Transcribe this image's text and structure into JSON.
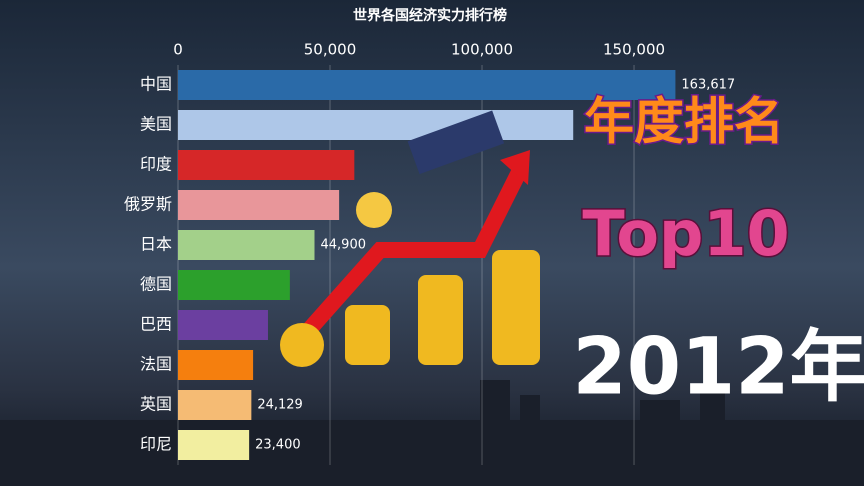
{
  "chart_data": {
    "type": "bar",
    "orientation": "horizontal",
    "title": "世界各国经济实力排行榜",
    "categories": [
      "中国",
      "美国",
      "印度",
      "俄罗斯",
      "日本",
      "德国",
      "巴西",
      "法国",
      "英国",
      "印尼"
    ],
    "values": [
      163617,
      130000,
      58000,
      53000,
      44900,
      36800,
      29600,
      24700,
      24129,
      23400
    ],
    "value_labels": [
      "163,617",
      null,
      null,
      null,
      "44,900",
      null,
      null,
      null,
      "24,129",
      "23,400"
    ],
    "colors": [
      "#2a6aa8",
      "#aec7e8",
      "#d62728",
      "#e8969a",
      "#a3d08a",
      "#2ca02c",
      "#6b3fa0",
      "#f57f0e",
      "#f5bb74",
      "#f2eea0"
    ],
    "xlim": [
      0,
      167000
    ],
    "xticks": [
      0,
      {
        "value": 50000,
        "label": "50,000"
      },
      {
        "value": 100000,
        "label": "100,000"
      },
      {
        "value": 150000,
        "label": "150,000"
      }
    ],
    "grid": true,
    "annotations": [
      "年度排名",
      "Top10",
      "2012年"
    ]
  }
}
